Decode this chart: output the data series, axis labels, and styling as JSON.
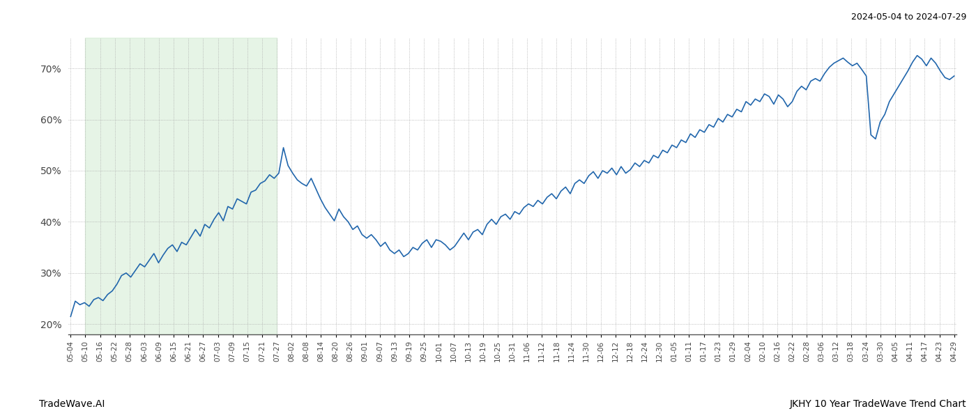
{
  "title_right": "2024-05-04 to 2024-07-29",
  "footer_left": "TradeWave.AI",
  "footer_right": "JKHY 10 Year TradeWave Trend Chart",
  "line_color": "#2166ac",
  "highlight_color": "#c8e8c8",
  "highlight_alpha": 0.45,
  "ylim": [
    18,
    76
  ],
  "yticks": [
    20,
    30,
    40,
    50,
    60,
    70
  ],
  "x_labels": [
    "05-04",
    "05-10",
    "05-16",
    "05-22",
    "05-28",
    "06-03",
    "06-09",
    "06-15",
    "06-21",
    "06-27",
    "07-03",
    "07-09",
    "07-15",
    "07-21",
    "07-27",
    "08-02",
    "08-08",
    "08-14",
    "08-20",
    "08-26",
    "09-01",
    "09-07",
    "09-13",
    "09-19",
    "09-25",
    "10-01",
    "10-07",
    "10-13",
    "10-19",
    "10-25",
    "10-31",
    "11-06",
    "11-12",
    "11-18",
    "11-24",
    "11-30",
    "12-06",
    "12-12",
    "12-18",
    "12-24",
    "12-30",
    "01-05",
    "01-11",
    "01-17",
    "01-23",
    "01-29",
    "02-04",
    "02-10",
    "02-16",
    "02-22",
    "02-28",
    "03-06",
    "03-12",
    "03-18",
    "03-24",
    "03-30",
    "04-05",
    "04-11",
    "04-17",
    "04-23",
    "04-29"
  ],
  "highlight_label_start": "05-10",
  "highlight_label_end": "07-27",
  "values": [
    21.5,
    24.5,
    23.8,
    24.2,
    23.5,
    24.8,
    25.2,
    24.6,
    25.8,
    26.5,
    27.8,
    29.5,
    30.0,
    29.2,
    30.5,
    31.8,
    31.2,
    32.5,
    33.8,
    32.0,
    33.5,
    34.8,
    35.5,
    34.2,
    36.0,
    35.5,
    37.0,
    38.5,
    37.2,
    39.5,
    38.8,
    40.5,
    41.8,
    40.2,
    43.0,
    42.5,
    44.5,
    44.0,
    43.5,
    45.8,
    46.2,
    47.5,
    48.0,
    49.2,
    48.5,
    49.5,
    54.5,
    51.0,
    49.5,
    48.2,
    47.5,
    47.0,
    48.5,
    46.5,
    44.5,
    42.8,
    41.5,
    40.2,
    42.5,
    41.0,
    40.0,
    38.5,
    39.2,
    37.5,
    36.8,
    37.5,
    36.5,
    35.2,
    36.0,
    34.5,
    33.8,
    34.5,
    33.2,
    33.8,
    35.0,
    34.5,
    35.8,
    36.5,
    35.0,
    36.5,
    36.2,
    35.5,
    34.5,
    35.2,
    36.5,
    37.8,
    36.5,
    38.0,
    38.5,
    37.5,
    39.5,
    40.5,
    39.5,
    41.0,
    41.5,
    40.5,
    42.0,
    41.5,
    42.8,
    43.5,
    43.0,
    44.2,
    43.5,
    44.8,
    45.5,
    44.5,
    46.0,
    46.8,
    45.5,
    47.5,
    48.2,
    47.5,
    49.0,
    49.8,
    48.5,
    50.0,
    49.5,
    50.5,
    49.2,
    50.8,
    49.5,
    50.2,
    51.5,
    50.8,
    52.0,
    51.5,
    53.0,
    52.5,
    54.0,
    53.5,
    55.0,
    54.5,
    56.0,
    55.5,
    57.2,
    56.5,
    58.0,
    57.5,
    59.0,
    58.5,
    60.2,
    59.5,
    61.0,
    60.5,
    62.0,
    61.5,
    63.5,
    62.8,
    64.0,
    63.5,
    65.0,
    64.5,
    63.0,
    64.8,
    64.0,
    62.5,
    63.5,
    65.5,
    66.5,
    65.8,
    67.5,
    68.0,
    67.5,
    69.0,
    70.2,
    71.0,
    71.5,
    72.0,
    71.2,
    70.5,
    71.0,
    69.8,
    68.5,
    57.0,
    56.2,
    59.5,
    61.0,
    63.5,
    65.0,
    66.5,
    68.0,
    69.5,
    71.2,
    72.5,
    71.8,
    70.5,
    72.0,
    71.0,
    69.5,
    68.2,
    67.8,
    68.5
  ]
}
